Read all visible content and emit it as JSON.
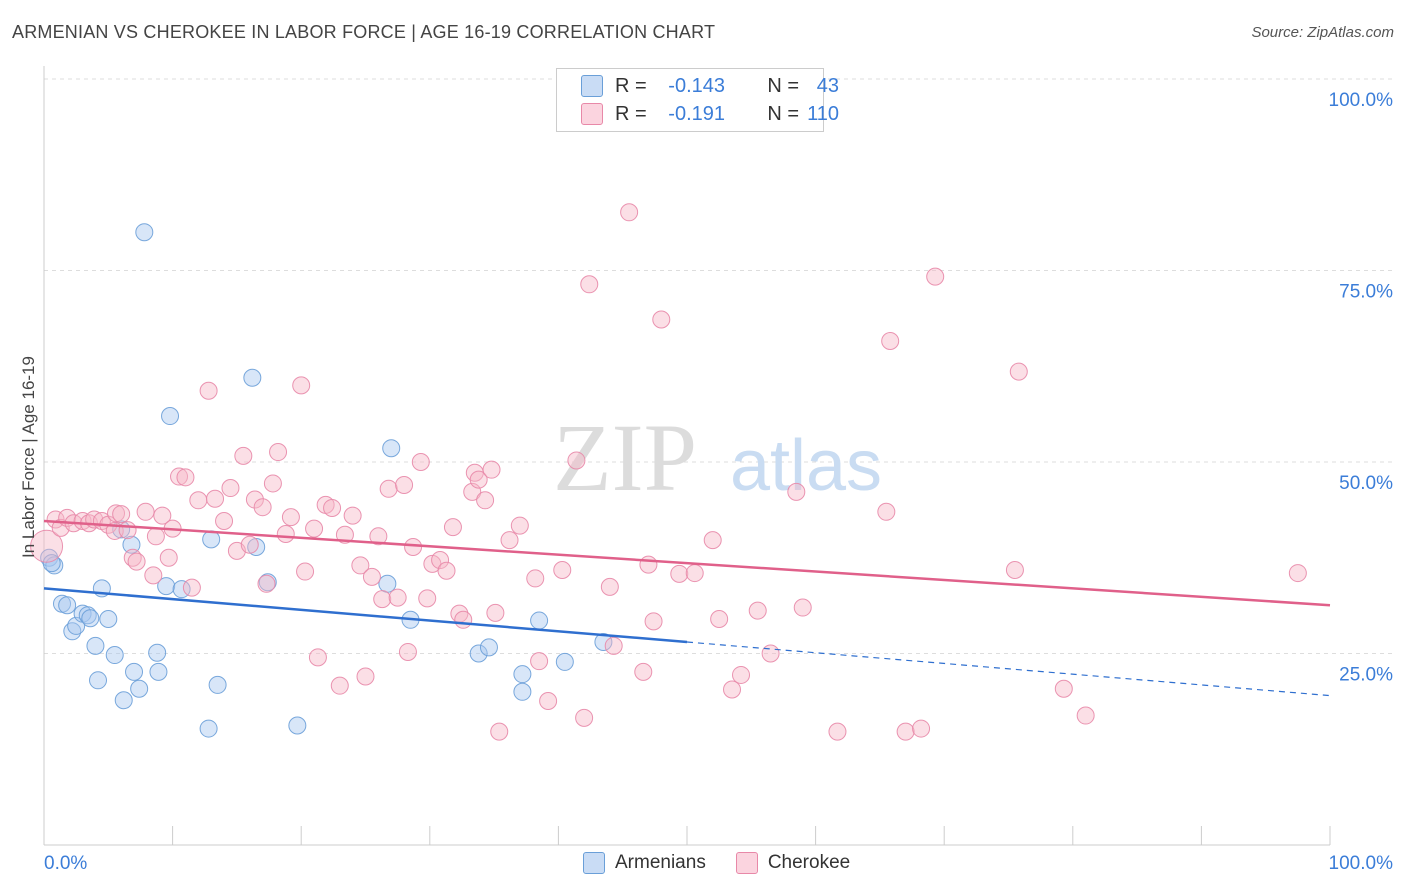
{
  "header": {
    "title": "ARMENIAN VS CHEROKEE IN LABOR FORCE | AGE 16-19 CORRELATION CHART",
    "source": "Source: ZipAtlas.com"
  },
  "watermark": {
    "zip": "ZIP",
    "atlas": "atlas"
  },
  "stats": {
    "rows": [
      {
        "r_label": "R =",
        "r_value": "-0.143",
        "n_label": "N =",
        "n_value": "43",
        "color": "#a8c8f0"
      },
      {
        "r_label": "R =",
        "r_value": "-0.191",
        "n_label": "N =",
        "n_value": "110",
        "color": "#f7b8c8"
      }
    ]
  },
  "legend": {
    "items": [
      {
        "label": "Armenians",
        "color": "#a8c8f0"
      },
      {
        "label": "Cherokee",
        "color": "#f7b8c8"
      }
    ]
  },
  "chart_data": {
    "type": "scatter",
    "title": "ARMENIAN VS CHEROKEE IN LABOR FORCE | AGE 16-19 CORRELATION CHART",
    "xlabel": "",
    "ylabel": "In Labor Force | Age 16-19",
    "x_tick_labels": [
      "0.0%",
      "100.0%"
    ],
    "y_tick_labels": [
      "25.0%",
      "50.0%",
      "75.0%",
      "100.0%"
    ],
    "y_ticks": [
      25,
      50,
      75,
      100
    ],
    "xlim": [
      0,
      100
    ],
    "ylim": [
      0,
      100
    ],
    "grid": true,
    "legend_position": "bottom-center",
    "series": [
      {
        "name": "Armenians",
        "color": "#a8c8f0",
        "stroke": "#6a9fd8",
        "trend_color": "#2f6fcf",
        "trend": {
          "x0": 0,
          "y0": 33.5,
          "x1": 50,
          "y1": 26.5,
          "dashed_to_x": 100,
          "dashed_to_y": 19.5
        },
        "points": [
          [
            0.4,
            37.5
          ],
          [
            0.8,
            36.5
          ],
          [
            0.6,
            36.8
          ],
          [
            1.4,
            31.5
          ],
          [
            1.8,
            31.3
          ],
          [
            2.2,
            27.9
          ],
          [
            2.5,
            28.6
          ],
          [
            3.0,
            30.2
          ],
          [
            3.4,
            30.0
          ],
          [
            3.6,
            29.6
          ],
          [
            4.0,
            26.0
          ],
          [
            4.2,
            21.5
          ],
          [
            4.5,
            33.5
          ],
          [
            5.0,
            29.5
          ],
          [
            5.5,
            24.8
          ],
          [
            6.0,
            41.2
          ],
          [
            6.2,
            18.9
          ],
          [
            6.8,
            39.2
          ],
          [
            7.0,
            22.6
          ],
          [
            7.4,
            20.4
          ],
          [
            7.8,
            80.0
          ],
          [
            8.8,
            25.1
          ],
          [
            8.9,
            22.6
          ],
          [
            9.5,
            33.8
          ],
          [
            9.8,
            56.0
          ],
          [
            10.7,
            33.4
          ],
          [
            12.8,
            15.2
          ],
          [
            13.0,
            39.9
          ],
          [
            13.5,
            20.9
          ],
          [
            16.2,
            61.0
          ],
          [
            16.5,
            38.9
          ],
          [
            17.4,
            34.3
          ],
          [
            19.7,
            15.6
          ],
          [
            26.7,
            34.1
          ],
          [
            27.0,
            51.8
          ],
          [
            28.5,
            29.4
          ],
          [
            33.8,
            25.0
          ],
          [
            34.6,
            25.8
          ],
          [
            37.2,
            22.3
          ],
          [
            37.2,
            20.0
          ],
          [
            38.5,
            29.3
          ],
          [
            40.5,
            23.9
          ],
          [
            43.5,
            26.5
          ]
        ]
      },
      {
        "name": "Cherokee",
        "color": "#f7b8c8",
        "stroke": "#e888a8",
        "trend_color": "#e0608a",
        "trend": {
          "x0": 0,
          "y0": 42.3,
          "x1": 100,
          "y1": 31.3
        },
        "points": [
          [
            0.2,
            39.0
          ],
          [
            0.9,
            42.5
          ],
          [
            1.3,
            41.4
          ],
          [
            1.8,
            42.7
          ],
          [
            2.3,
            42.0
          ],
          [
            3.0,
            42.3
          ],
          [
            3.5,
            42.0
          ],
          [
            3.9,
            42.5
          ],
          [
            4.5,
            42.3
          ],
          [
            5.0,
            41.8
          ],
          [
            5.5,
            41.0
          ],
          [
            5.6,
            43.3
          ],
          [
            6.0,
            43.2
          ],
          [
            6.5,
            41.1
          ],
          [
            6.9,
            37.5
          ],
          [
            7.2,
            37.0
          ],
          [
            7.9,
            43.5
          ],
          [
            8.5,
            35.2
          ],
          [
            8.7,
            40.3
          ],
          [
            9.2,
            43.0
          ],
          [
            9.7,
            37.5
          ],
          [
            10.0,
            41.3
          ],
          [
            10.5,
            48.1
          ],
          [
            11.0,
            48.0
          ],
          [
            11.5,
            33.6
          ],
          [
            12.0,
            45.0
          ],
          [
            12.8,
            59.3
          ],
          [
            13.3,
            45.2
          ],
          [
            14.0,
            42.3
          ],
          [
            14.5,
            46.6
          ],
          [
            15.0,
            38.4
          ],
          [
            15.5,
            50.8
          ],
          [
            16.0,
            39.2
          ],
          [
            16.4,
            45.1
          ],
          [
            17.0,
            44.1
          ],
          [
            17.3,
            34.1
          ],
          [
            17.8,
            47.2
          ],
          [
            18.2,
            51.3
          ],
          [
            18.8,
            40.6
          ],
          [
            19.2,
            42.8
          ],
          [
            20.0,
            60.0
          ],
          [
            20.3,
            35.7
          ],
          [
            21.0,
            41.3
          ],
          [
            21.3,
            24.5
          ],
          [
            21.9,
            44.4
          ],
          [
            22.4,
            44.0
          ],
          [
            23.0,
            20.8
          ],
          [
            23.4,
            40.5
          ],
          [
            24.0,
            43.0
          ],
          [
            24.6,
            36.5
          ],
          [
            25.0,
            22.0
          ],
          [
            25.5,
            35.0
          ],
          [
            26.0,
            40.3
          ],
          [
            26.3,
            32.1
          ],
          [
            26.8,
            46.5
          ],
          [
            27.5,
            32.3
          ],
          [
            28.0,
            47.0
          ],
          [
            28.3,
            25.2
          ],
          [
            28.7,
            38.9
          ],
          [
            29.3,
            50.0
          ],
          [
            29.8,
            32.2
          ],
          [
            30.2,
            36.7
          ],
          [
            30.8,
            37.2
          ],
          [
            31.3,
            35.8
          ],
          [
            31.8,
            41.5
          ],
          [
            32.3,
            30.2
          ],
          [
            32.6,
            29.4
          ],
          [
            33.3,
            46.1
          ],
          [
            33.5,
            48.6
          ],
          [
            33.8,
            47.7
          ],
          [
            34.3,
            45.0
          ],
          [
            34.8,
            49.0
          ],
          [
            35.1,
            30.3
          ],
          [
            35.4,
            14.8
          ],
          [
            36.2,
            39.8
          ],
          [
            37.0,
            41.7
          ],
          [
            38.2,
            34.8
          ],
          [
            38.5,
            24.0
          ],
          [
            39.2,
            18.8
          ],
          [
            40.3,
            35.9
          ],
          [
            41.4,
            50.2
          ],
          [
            42.0,
            16.6
          ],
          [
            42.4,
            73.2
          ],
          [
            44.0,
            33.7
          ],
          [
            44.3,
            26.0
          ],
          [
            45.5,
            82.6
          ],
          [
            46.6,
            22.6
          ],
          [
            47.0,
            36.6
          ],
          [
            47.4,
            29.2
          ],
          [
            48.0,
            68.6
          ],
          [
            49.4,
            35.4
          ],
          [
            50.6,
            35.5
          ],
          [
            52.0,
            39.8
          ],
          [
            52.5,
            29.5
          ],
          [
            53.5,
            20.3
          ],
          [
            54.2,
            22.2
          ],
          [
            55.5,
            30.6
          ],
          [
            56.5,
            25.0
          ],
          [
            58.5,
            46.1
          ],
          [
            59.0,
            31.0
          ],
          [
            61.7,
            14.8
          ],
          [
            65.5,
            43.5
          ],
          [
            65.8,
            65.8
          ],
          [
            67.0,
            14.8
          ],
          [
            68.2,
            15.2
          ],
          [
            69.3,
            74.2
          ],
          [
            75.5,
            35.9
          ],
          [
            75.8,
            61.8
          ],
          [
            79.3,
            20.4
          ],
          [
            81.0,
            16.9
          ],
          [
            97.5,
            35.5
          ]
        ]
      }
    ]
  }
}
